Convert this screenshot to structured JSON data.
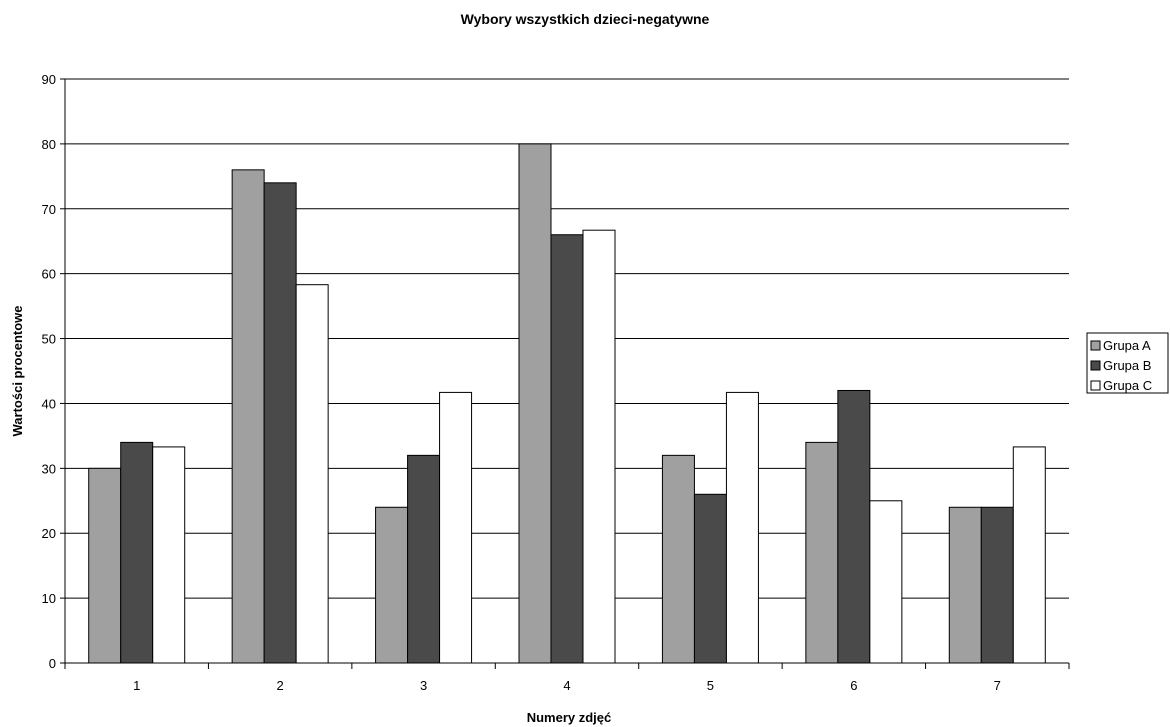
{
  "chart_data": {
    "type": "bar",
    "title": "Wybory wszystkich dzieci-negatywne",
    "xlabel": "Numery zdjęć",
    "ylabel": "Wartości procentowe",
    "categories": [
      "1",
      "2",
      "3",
      "4",
      "5",
      "6",
      "7"
    ],
    "ylim": [
      0,
      90
    ],
    "yticks": [
      0,
      10,
      20,
      30,
      40,
      50,
      60,
      70,
      80,
      90
    ],
    "grid": true,
    "legend_position": "right",
    "series": [
      {
        "name": "Grupa A",
        "color": "#a0a0a0",
        "values": [
          30,
          76,
          24,
          80,
          32,
          34,
          24
        ]
      },
      {
        "name": "Grupa B",
        "color": "#4a4a4a",
        "values": [
          34,
          74,
          32,
          66,
          26,
          42,
          24
        ]
      },
      {
        "name": "Grupa C",
        "color": "#ffffff",
        "values": [
          33.3,
          58.3,
          41.7,
          66.7,
          41.7,
          25,
          33.3
        ]
      }
    ]
  }
}
